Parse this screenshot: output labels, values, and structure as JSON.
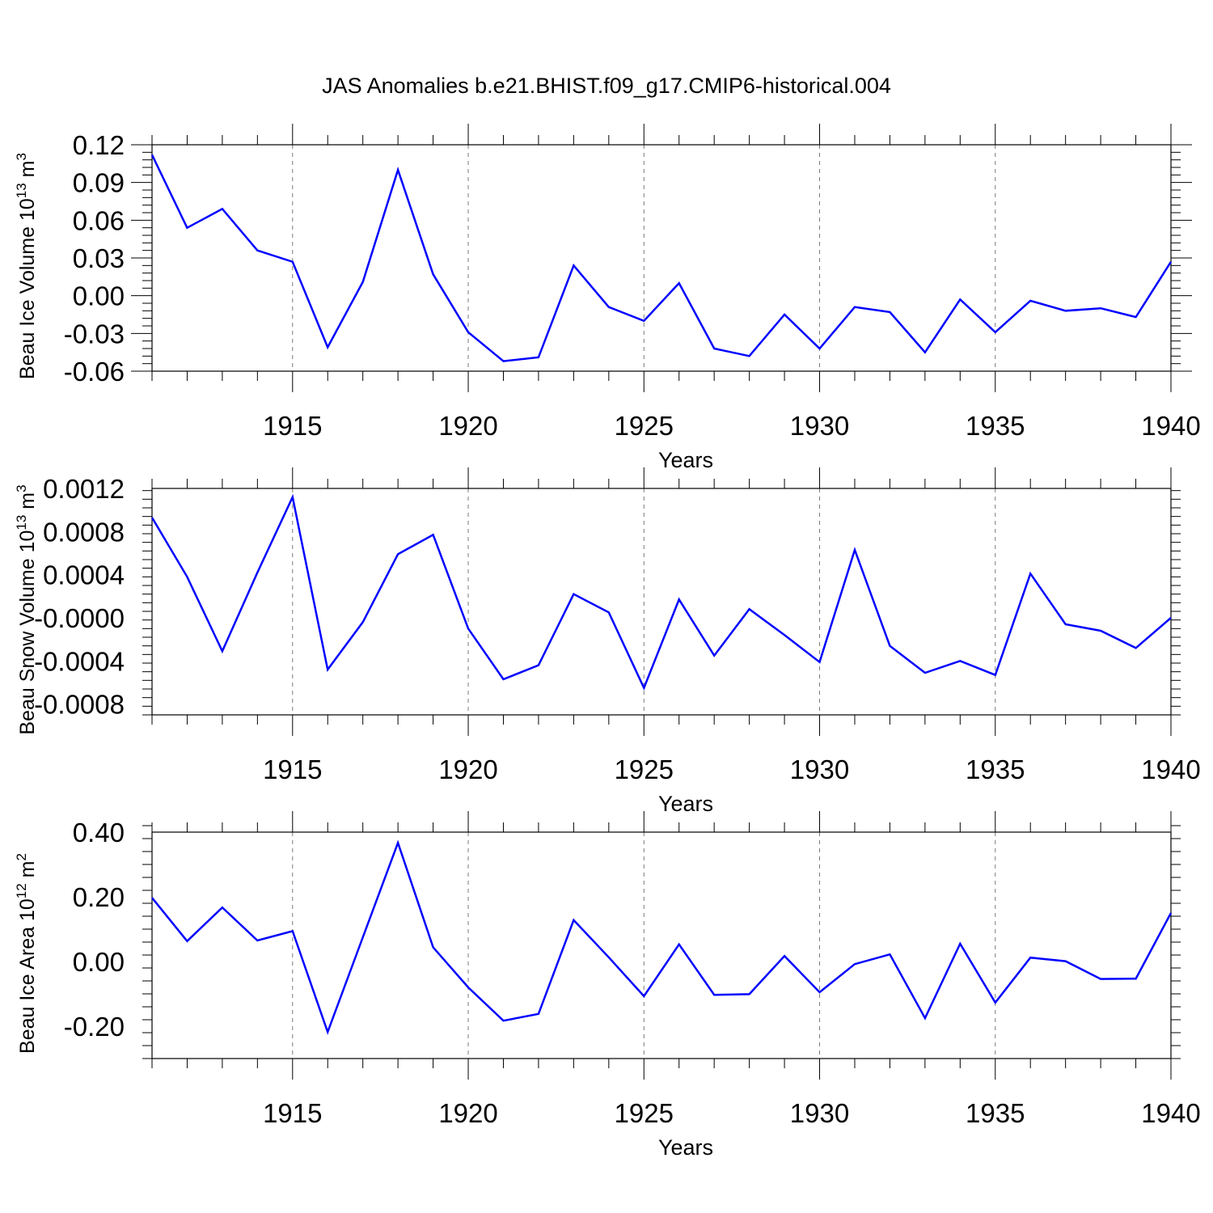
{
  "title": "JAS Anomalies b.e21.BHIST.f09_g17.CMIP6-historical.004",
  "line_color": "#0000ff",
  "chart_data": [
    {
      "type": "line",
      "title": "JAS Anomalies b.e21.BHIST.f09_g17.CMIP6-historical.004",
      "ylabel": "Beau Ice Volume 10",
      "ylabel_exponent": "13",
      "ylabel_unit": "m",
      "ylabel_unit_exponent": "3",
      "xlabel": "Years",
      "xlim": [
        1911,
        1940
      ],
      "ylim": [
        -0.06,
        0.12
      ],
      "yticks": [
        0.12,
        0.09,
        0.06,
        0.03,
        0.0,
        -0.03,
        -0.06
      ],
      "ytick_labels": [
        "0.12",
        "0.09",
        "0.06",
        "0.03",
        "0.00",
        "-0.03",
        "-0.06"
      ],
      "xticks": [
        1915,
        1920,
        1925,
        1930,
        1935,
        1940
      ],
      "xtick_labels": [
        "1915",
        "1920",
        "1925",
        "1930",
        "1935",
        "1940"
      ],
      "x": [
        1911,
        1912,
        1913,
        1914,
        1915,
        1916,
        1917,
        1918,
        1919,
        1920,
        1921,
        1922,
        1923,
        1924,
        1925,
        1926,
        1927,
        1928,
        1929,
        1930,
        1931,
        1932,
        1933,
        1934,
        1935,
        1936,
        1937,
        1938,
        1939,
        1940
      ],
      "values": [
        0.112,
        0.054,
        0.069,
        0.036,
        0.027,
        -0.041,
        0.011,
        0.1,
        0.017,
        -0.029,
        -0.052,
        -0.049,
        0.024,
        -0.009,
        -0.02,
        0.01,
        -0.042,
        -0.048,
        -0.015,
        -0.042,
        -0.009,
        -0.013,
        -0.045,
        -0.003,
        -0.029,
        -0.004,
        -0.012,
        -0.01,
        -0.017,
        0.027
      ]
    },
    {
      "type": "line",
      "ylabel": "Beau Snow Volume 10",
      "ylabel_exponent": "13",
      "ylabel_unit": "m",
      "ylabel_unit_exponent": "3",
      "xlabel": "Years",
      "xlim": [
        1911,
        1940
      ],
      "ylim": [
        -0.0009,
        0.0012
      ],
      "yticks": [
        0.0012,
        0.0008,
        0.0004,
        0.0,
        -0.0004,
        -0.0008
      ],
      "ytick_labels": [
        "0.0012",
        "0.0008",
        "0.0004",
        "-0.0000",
        "-0.0004",
        "-0.0008"
      ],
      "xticks": [
        1915,
        1920,
        1925,
        1930,
        1935,
        1940
      ],
      "xtick_labels": [
        "1915",
        "1920",
        "1925",
        "1930",
        "1935",
        "1940"
      ],
      "x": [
        1911,
        1912,
        1913,
        1914,
        1915,
        1916,
        1917,
        1918,
        1919,
        1920,
        1921,
        1922,
        1923,
        1924,
        1925,
        1926,
        1927,
        1928,
        1929,
        1930,
        1931,
        1932,
        1933,
        1934,
        1935,
        1936,
        1937,
        1938,
        1939,
        1940
      ],
      "values": [
        0.00093,
        0.00038,
        -0.00031,
        0.00042,
        0.00112,
        -0.00048,
        -4e-05,
        0.00059,
        0.00077,
        -0.0001,
        -0.00057,
        -0.00044,
        0.00022,
        5e-05,
        -0.00065,
        0.00017,
        -0.00035,
        8e-05,
        -0.00016,
        -0.00041,
        0.00063,
        -0.00026,
        -0.00051,
        -0.0004,
        -0.00053,
        0.00041,
        -6e-05,
        -0.00012,
        -0.00028,
        0.0
      ]
    },
    {
      "type": "line",
      "ylabel": "Beau Ice Area 10",
      "ylabel_exponent": "12",
      "ylabel_unit": "m",
      "ylabel_unit_exponent": "2",
      "xlabel": "Years",
      "xlim": [
        1911,
        1940
      ],
      "ylim": [
        -0.3,
        0.4
      ],
      "yticks": [
        0.4,
        0.2,
        0.0,
        -0.2
      ],
      "ytick_labels": [
        "0.40",
        "0.20",
        "0.00",
        "-0.20"
      ],
      "xticks": [
        1915,
        1920,
        1925,
        1930,
        1935,
        1940
      ],
      "xtick_labels": [
        "1915",
        "1920",
        "1925",
        "1930",
        "1935",
        "1940"
      ],
      "x": [
        1911,
        1912,
        1913,
        1914,
        1915,
        1916,
        1917,
        1918,
        1919,
        1920,
        1921,
        1922,
        1923,
        1924,
        1925,
        1926,
        1927,
        1928,
        1929,
        1930,
        1931,
        1932,
        1933,
        1934,
        1935,
        1936,
        1937,
        1938,
        1939,
        1940
      ],
      "values": [
        0.197,
        0.063,
        0.167,
        0.065,
        0.094,
        -0.218,
        0.075,
        0.367,
        0.044,
        -0.08,
        -0.183,
        -0.162,
        0.128,
        0.013,
        -0.107,
        0.053,
        -0.103,
        -0.101,
        0.017,
        -0.095,
        -0.008,
        0.022,
        -0.175,
        0.055,
        -0.127,
        0.012,
        0.001,
        -0.054,
        -0.053,
        0.15
      ]
    }
  ]
}
